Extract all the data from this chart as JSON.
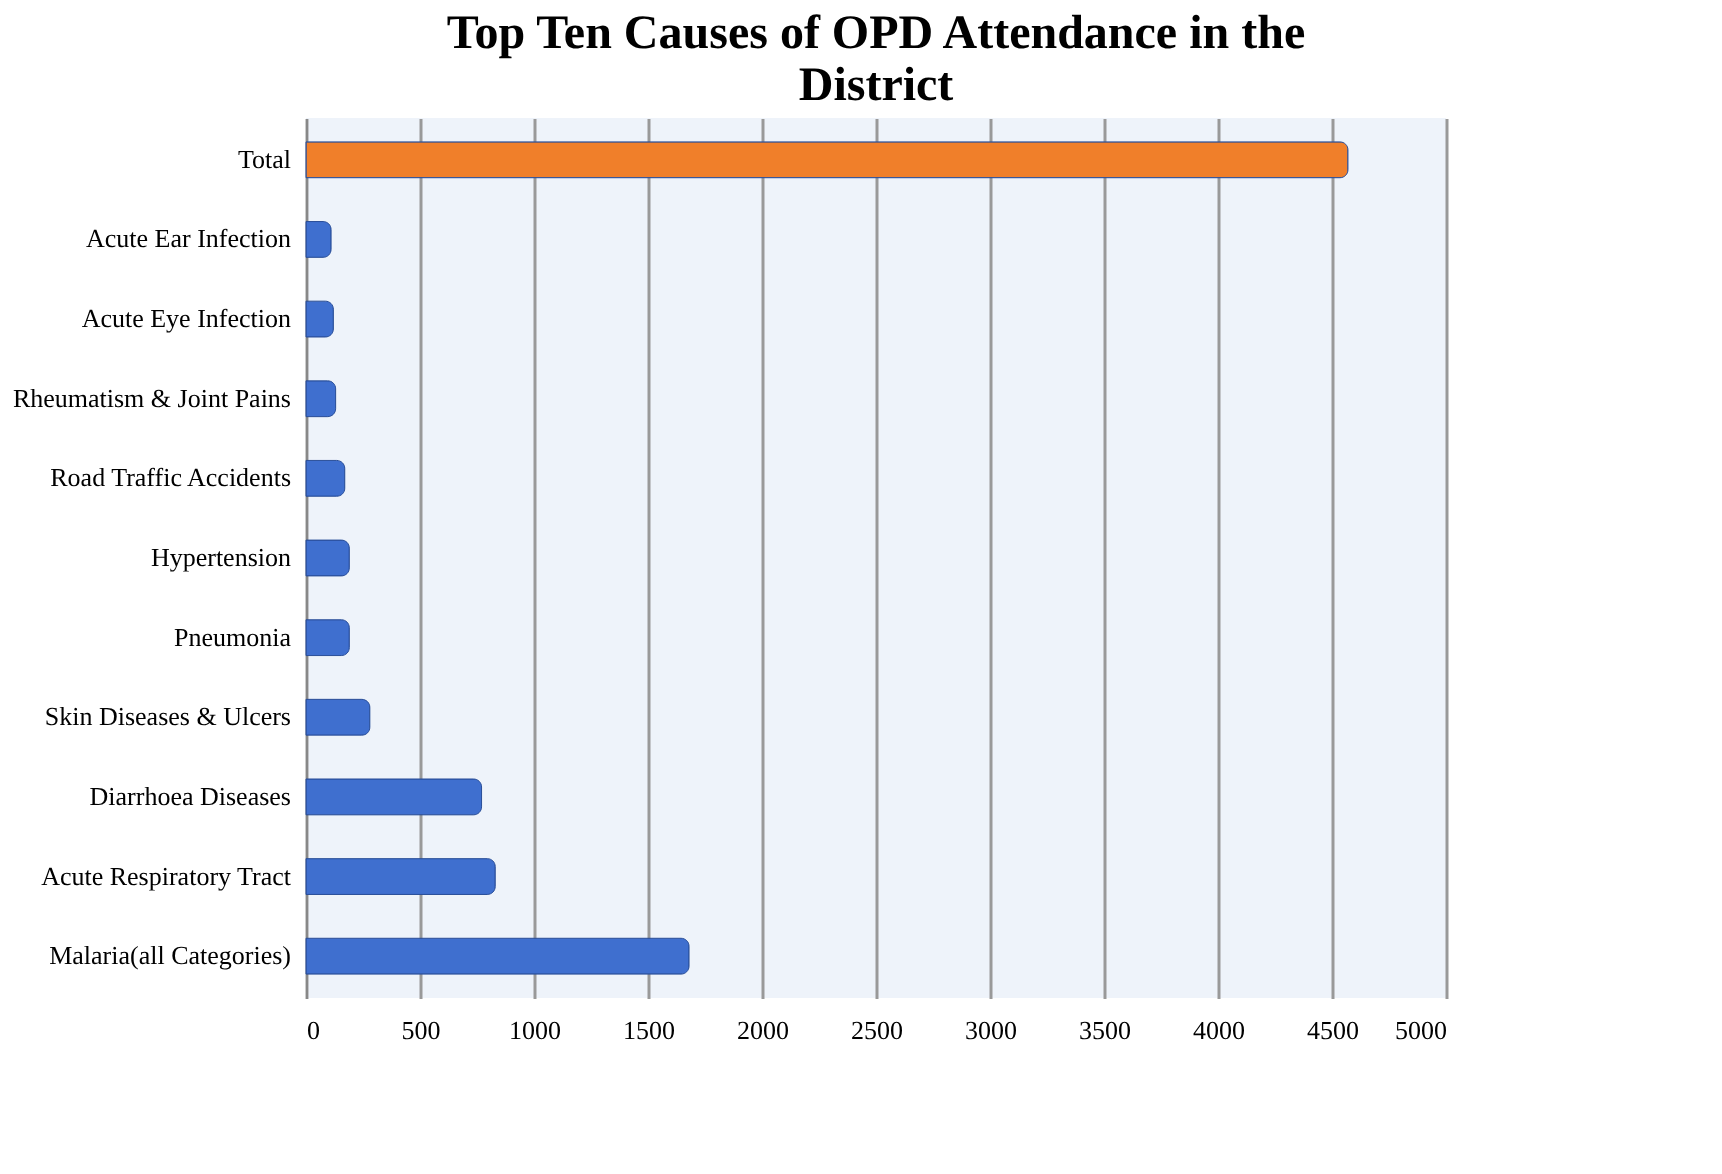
{
  "chart_data": {
    "type": "bar",
    "orientation": "horizontal",
    "title": "Top Ten Causes of OPD Attendance in the District",
    "categories": [
      "Total",
      "Acute Ear Infection",
      "Acute Eye Infection",
      "Rheumatism & Joint Pains",
      "Road Traffic Accidents",
      "Hypertension",
      "Pneumonia",
      "Skin Diseases & Ulcers",
      "Diarrhoea Diseases",
      "Acute Respiratory Tract",
      "Malaria(all Categories)"
    ],
    "values": [
      4570,
      110,
      120,
      130,
      170,
      190,
      190,
      280,
      770,
      830,
      1680
    ],
    "colors": [
      "#f07f2a",
      "#3f6fcf",
      "#3f6fcf",
      "#3f6fcf",
      "#3f6fcf",
      "#3f6fcf",
      "#3f6fcf",
      "#3f6fcf",
      "#3f6fcf",
      "#3f6fcf",
      "#3f6fcf"
    ],
    "xlim": [
      0,
      5000
    ],
    "xticks": [
      0,
      500,
      1000,
      1500,
      2000,
      2500,
      3000,
      3500,
      4000,
      4500,
      5000
    ],
    "grid": "x"
  }
}
